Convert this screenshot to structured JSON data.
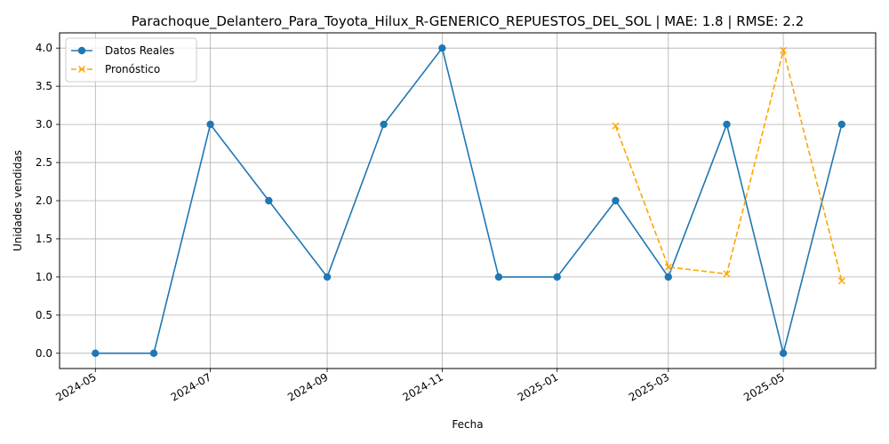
{
  "chart_data": {
    "type": "line",
    "title": "Parachoque_Delantero_Para_Toyota_Hilux_R-GENERICO_REPUESTOS_DEL_SOL | MAE: 1.8 | RMSE: 2.2",
    "xlabel": "Fecha",
    "ylabel": "Unidades vendidas",
    "ylim": [
      -0.2,
      4.2
    ],
    "xlim": [
      "2024-04-12",
      "2025-06-19"
    ],
    "grid": true,
    "legend_position": "top-left",
    "x_ticks": [
      "2024-05",
      "2024-07",
      "2024-09",
      "2024-11",
      "2025-01",
      "2025-03",
      "2025-05"
    ],
    "y_ticks": [
      "0.0",
      "0.5",
      "1.0",
      "1.5",
      "2.0",
      "2.5",
      "3.0",
      "3.5",
      "4.0"
    ],
    "series": [
      {
        "name": "Datos Reales",
        "color": "#1f77b4",
        "style": "solid",
        "marker": "circle",
        "x": [
          "2024-05-01",
          "2024-06-01",
          "2024-07-01",
          "2024-08-01",
          "2024-09-01",
          "2024-10-01",
          "2024-11-01",
          "2024-12-01",
          "2025-01-01",
          "2025-02-01",
          "2025-03-01",
          "2025-04-01",
          "2025-05-01",
          "2025-06-01"
        ],
        "values": [
          0,
          0,
          3,
          2,
          1,
          3,
          4,
          1,
          1,
          2,
          1,
          3,
          0,
          3
        ]
      },
      {
        "name": "Pronóstico",
        "color": "#ffa500",
        "style": "dashed",
        "marker": "x",
        "x": [
          "2025-02-01",
          "2025-03-01",
          "2025-04-01",
          "2025-05-01",
          "2025-06-01"
        ],
        "values": [
          2.98,
          1.13,
          1.04,
          3.97,
          0.95
        ]
      }
    ]
  }
}
